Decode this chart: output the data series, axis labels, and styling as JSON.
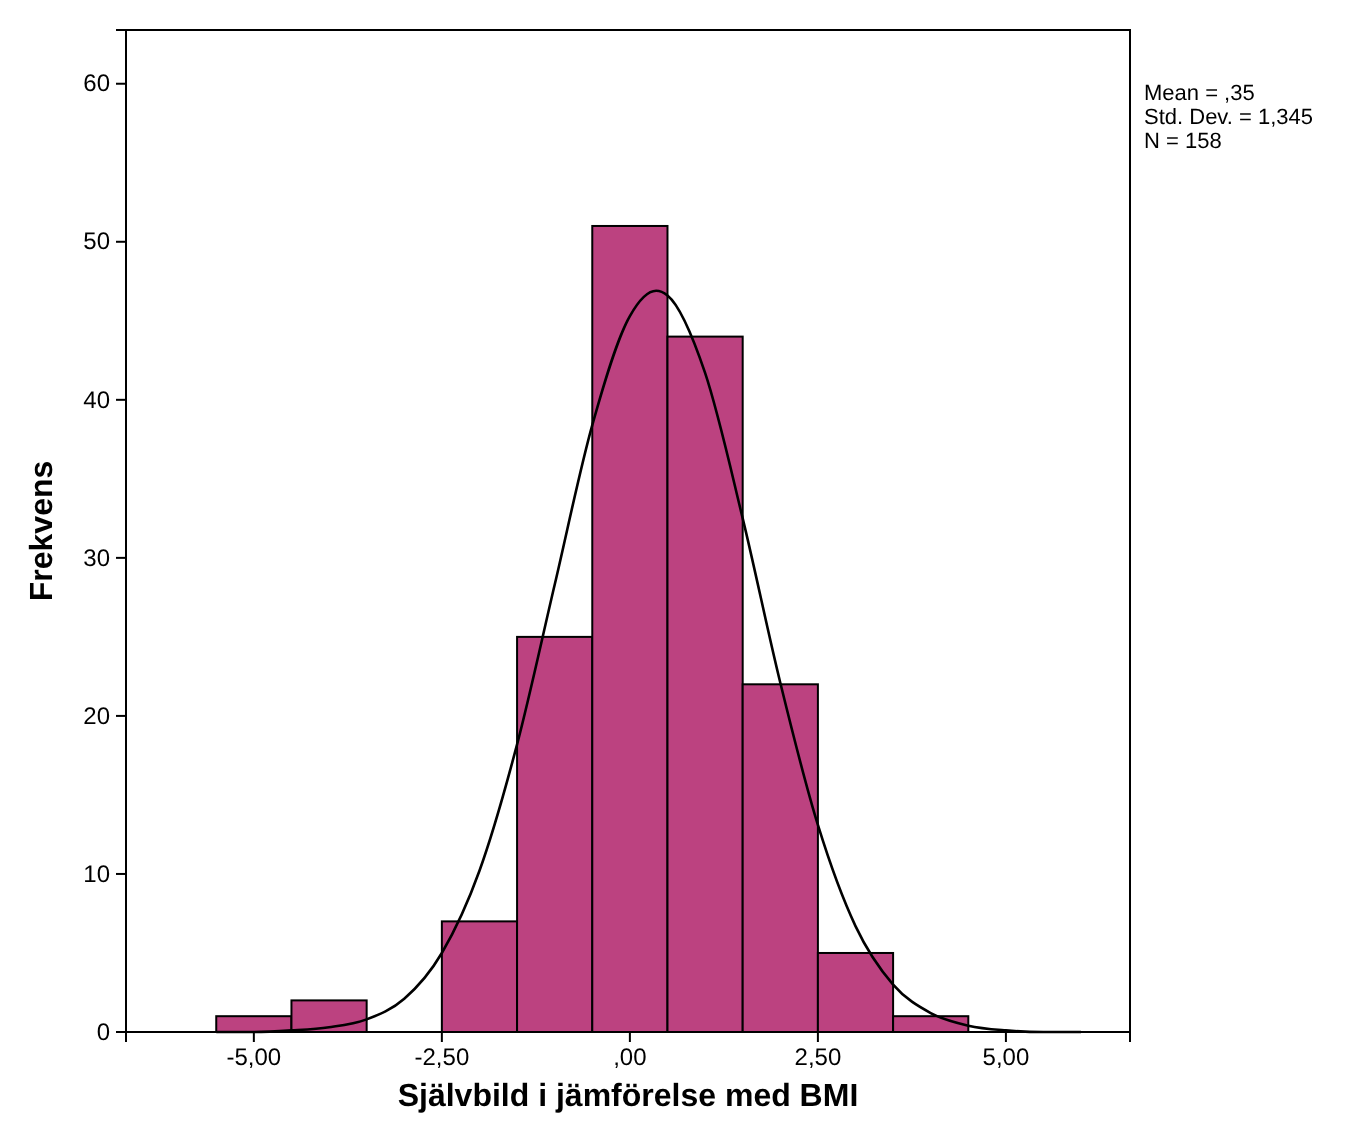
{
  "chart_data": {
    "type": "histogram",
    "xlabel": "Självbild i jämförelse med BMI",
    "ylabel": "Frekvens",
    "bins": [
      -5.5,
      -4.5,
      -3.5,
      -2.5,
      -1.5,
      -0.5,
      0.5,
      1.5,
      2.5,
      3.5,
      4.5
    ],
    "values": [
      1,
      2,
      0,
      7,
      25,
      51,
      44,
      22,
      5,
      1
    ],
    "color": "#bc4280",
    "series": [
      {
        "type": "line",
        "color": "#000000",
        "x": [
          -5.5,
          -5,
          -4.5,
          -4,
          -3.5,
          -3,
          -2.5,
          -2,
          -1.5,
          -1,
          -0.5,
          0,
          0.35,
          0.5,
          1,
          1.5,
          2,
          2.5,
          3,
          3.5,
          4,
          4.5,
          5,
          5.5,
          6
        ],
        "values": [
          0,
          0,
          0.1,
          0.3,
          0.8,
          2.1,
          5,
          10.2,
          18.2,
          28.3,
          38.4,
          45.3,
          46.9,
          46.6,
          41.7,
          32.5,
          22.1,
          13.1,
          6.7,
          3,
          1.2,
          0.4,
          0.1,
          0,
          0
        ]
      }
    ],
    "xlim": [
      -6.7,
      6.65
    ],
    "xticks": [
      {
        "value": -5,
        "label": "-5,00"
      },
      {
        "value": -2.5,
        "label": "-2,50"
      },
      {
        "value": 0,
        "label": ",00"
      },
      {
        "value": 2.5,
        "label": "2,50"
      },
      {
        "value": 5,
        "label": "5,00"
      }
    ],
    "ylim": [
      0,
      63.4
    ],
    "yticks": [
      0,
      10,
      20,
      30,
      40,
      50,
      60
    ],
    "grid": false,
    "annotations": [
      "Mean = ,35",
      "Std. Dev. = 1,345",
      "N = 158"
    ]
  }
}
